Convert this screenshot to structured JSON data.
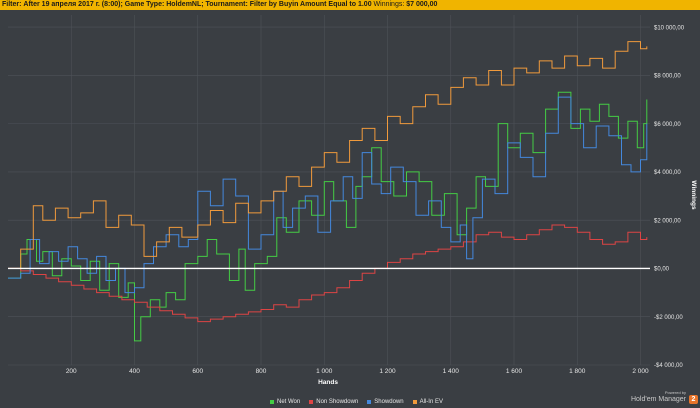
{
  "filter": {
    "label": "Filter:",
    "text": "After 19 апреля 2017 г. (8:00); Game Type: HoldemNL; Tournament: Filter by Buyin Amount Equal to 1.00",
    "winnings_label": "Winnings:",
    "winnings_value": "$7 000,00"
  },
  "brand": {
    "powered_by": "Powered by",
    "name": "Hold'em Manager",
    "logo_char": "2"
  },
  "colors": {
    "background": "#3a3e43",
    "grid": "#4e5258",
    "zero_line": "#ffffff",
    "net_won": "#44cc44",
    "non_showdown": "#dd4444",
    "showdown": "#4488dd",
    "all_in_ev": "#f09a3c"
  },
  "chart_data": {
    "type": "line",
    "title": "",
    "xlabel": "Hands",
    "ylabel": "Winnings",
    "xlim": [
      0,
      2030
    ],
    "ylim": [
      -4000,
      10500
    ],
    "x_ticks": [
      200,
      400,
      600,
      800,
      1000,
      1200,
      1400,
      1600,
      1800,
      2000
    ],
    "x_tick_labels": [
      "200",
      "400",
      "600",
      "800",
      "1 000",
      "1 200",
      "1 400",
      "1 600",
      "1 800",
      "2 000"
    ],
    "y_ticks": [
      -4000,
      -2000,
      0,
      2000,
      4000,
      6000,
      8000,
      10000
    ],
    "y_tick_labels": [
      "-$4 000,00",
      "-$2 000,00",
      "$0,00",
      "$2 000,00",
      "$4 000,00",
      "$6 000,00",
      "$8 000,00",
      "$10 000,00"
    ],
    "grid": true,
    "legend_position": "bottom",
    "series": [
      {
        "name": "Net Won",
        "color": "#44cc44",
        "x": [
          0,
          40,
          60,
          90,
          110,
          140,
          170,
          200,
          230,
          260,
          290,
          320,
          350,
          380,
          400,
          420,
          450,
          480,
          500,
          530,
          560,
          600,
          630,
          660,
          700,
          730,
          750,
          780,
          820,
          850,
          880,
          920,
          960,
          1000,
          1030,
          1070,
          1100,
          1120,
          1150,
          1180,
          1220,
          1260,
          1300,
          1340,
          1380,
          1420,
          1450,
          1480,
          1510,
          1550,
          1580,
          1620,
          1660,
          1700,
          1740,
          1780,
          1810,
          1840,
          1870,
          1900,
          1930,
          1960,
          1990,
          2010,
          2020
        ],
        "y": [
          -400,
          600,
          1200,
          300,
          700,
          -300,
          400,
          100,
          -500,
          300,
          -900,
          200,
          -1200,
          -600,
          -3000,
          -2000,
          -1300,
          -1600,
          -1000,
          -1300,
          200,
          500,
          1200,
          600,
          -500,
          800,
          -900,
          200,
          500,
          2100,
          1500,
          2800,
          2200,
          3600,
          2800,
          1700,
          3400,
          3800,
          5000,
          3600,
          3000,
          4000,
          3600,
          2200,
          3100,
          1400,
          2500,
          3800,
          3400,
          6000,
          5000,
          5600,
          4800,
          6600,
          7300,
          5800,
          6600,
          6100,
          6800,
          6300,
          5400,
          6100,
          5000,
          6000,
          7000
        ]
      },
      {
        "name": "Non Showdown",
        "color": "#dd4444",
        "x": [
          0,
          40,
          80,
          120,
          160,
          200,
          240,
          280,
          320,
          360,
          400,
          440,
          480,
          520,
          560,
          600,
          640,
          680,
          720,
          760,
          800,
          840,
          880,
          920,
          960,
          1000,
          1040,
          1080,
          1120,
          1160,
          1200,
          1240,
          1280,
          1320,
          1360,
          1400,
          1440,
          1480,
          1520,
          1560,
          1600,
          1640,
          1680,
          1720,
          1760,
          1800,
          1840,
          1880,
          1920,
          1960,
          2000,
          2020
        ],
        "y": [
          0,
          -100,
          -250,
          -400,
          -550,
          -700,
          -850,
          -1000,
          -1150,
          -1300,
          -1400,
          -1600,
          -1750,
          -1900,
          -2050,
          -2200,
          -2100,
          -2000,
          -1900,
          -1800,
          -1700,
          -1500,
          -1600,
          -1300,
          -1100,
          -1000,
          -800,
          -500,
          -200,
          0,
          250,
          400,
          600,
          700,
          800,
          900,
          1100,
          1400,
          1500,
          1300,
          1200,
          1400,
          1600,
          1800,
          1700,
          1500,
          1200,
          1000,
          1100,
          1500,
          1200,
          1300
        ]
      },
      {
        "name": "Showdown",
        "color": "#4488dd",
        "x": [
          0,
          40,
          70,
          100,
          130,
          160,
          190,
          220,
          250,
          280,
          310,
          340,
          370,
          400,
          430,
          460,
          500,
          540,
          570,
          600,
          640,
          680,
          720,
          760,
          800,
          840,
          870,
          900,
          940,
          980,
          1020,
          1060,
          1090,
          1120,
          1150,
          1180,
          1210,
          1250,
          1290,
          1330,
          1370,
          1400,
          1430,
          1450,
          1470,
          1500,
          1540,
          1580,
          1620,
          1660,
          1700,
          1740,
          1780,
          1820,
          1860,
          1900,
          1940,
          1970,
          2000,
          2020
        ],
        "y": [
          -400,
          -200,
          1200,
          200,
          700,
          300,
          900,
          400,
          -200,
          500,
          -500,
          0,
          -1000,
          -800,
          200,
          900,
          1400,
          900,
          1200,
          3200,
          2600,
          3700,
          3000,
          800,
          1400,
          3200,
          1700,
          2500,
          3000,
          1500,
          2800,
          3800,
          2900,
          4800,
          3500,
          3100,
          4200,
          3600,
          2200,
          2800,
          1700,
          1100,
          1800,
          400,
          2100,
          3700,
          3100,
          5200,
          4600,
          3800,
          5600,
          7100,
          6000,
          5000,
          5900,
          5500,
          4300,
          4000,
          4500,
          6000
        ]
      },
      {
        "name": "All-In EV",
        "color": "#f09a3c",
        "x": [
          0,
          40,
          80,
          110,
          150,
          190,
          230,
          270,
          310,
          350,
          390,
          430,
          470,
          510,
          550,
          600,
          640,
          680,
          720,
          760,
          800,
          840,
          880,
          920,
          960,
          1000,
          1040,
          1080,
          1120,
          1160,
          1200,
          1240,
          1280,
          1320,
          1360,
          1400,
          1440,
          1480,
          1520,
          1560,
          1600,
          1640,
          1680,
          1720,
          1760,
          1800,
          1840,
          1880,
          1920,
          1960,
          2000,
          2020
        ],
        "y": [
          0,
          800,
          2600,
          2000,
          2500,
          2100,
          2300,
          2800,
          1700,
          2200,
          1800,
          500,
          1100,
          1700,
          1300,
          1800,
          2400,
          1900,
          2700,
          2300,
          2800,
          3200,
          3800,
          3400,
          4200,
          4800,
          4400,
          5300,
          5800,
          5300,
          6300,
          6000,
          6700,
          7200,
          6800,
          7500,
          7900,
          7600,
          8200,
          7600,
          8300,
          8100,
          8600,
          8300,
          8800,
          8400,
          8700,
          8300,
          9000,
          9400,
          9100,
          9200
        ]
      }
    ]
  }
}
